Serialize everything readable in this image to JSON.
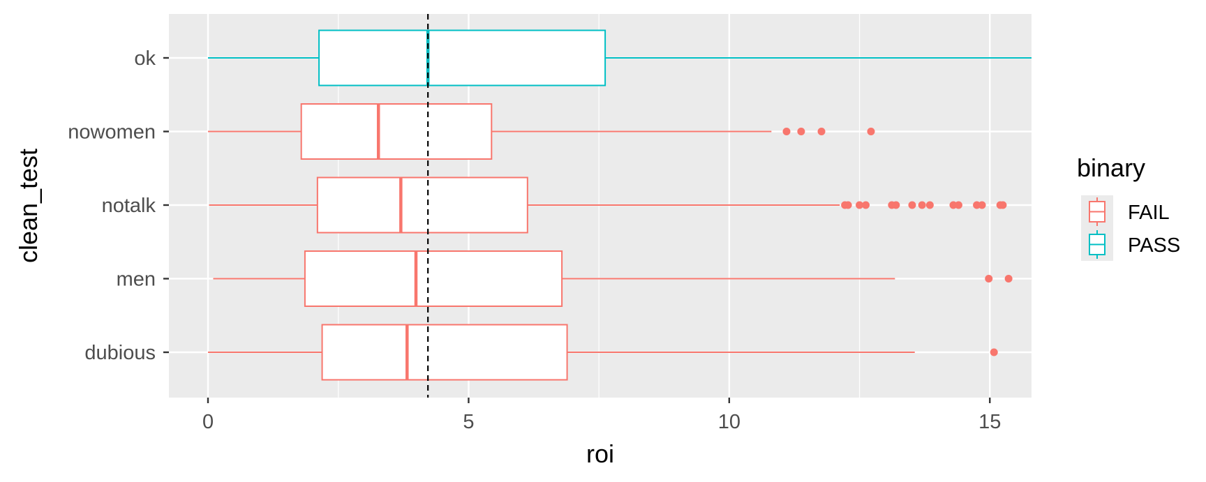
{
  "chart_data": {
    "type": "boxplot",
    "orientation": "horizontal",
    "xlabel": "roi",
    "ylabel": "clean_test",
    "xlim": [
      -0.75,
      15.8
    ],
    "xticks": [
      0,
      5,
      10,
      15
    ],
    "xtick_labels": [
      "0",
      "5",
      "10",
      "15"
    ],
    "categories": [
      "ok",
      "nowomen",
      "notalk",
      "men",
      "dubious"
    ],
    "reference_line": {
      "x": 4.22,
      "style": "dashed",
      "color": "#000000"
    },
    "grid": true,
    "panel_background": "#ebebeb",
    "legend": {
      "title": "binary",
      "position": "right",
      "entries": [
        {
          "label": "FAIL",
          "color": "#f8766d"
        },
        {
          "label": "PASS",
          "color": "#00bfc4"
        }
      ]
    },
    "boxes": [
      {
        "category": "ok",
        "group": "PASS",
        "whisker_low": 0.0,
        "q1": 2.13,
        "median": 4.22,
        "q3": 7.62,
        "whisker_high": 15.8,
        "outliers": []
      },
      {
        "category": "nowomen",
        "group": "FAIL",
        "whisker_low": 0.0,
        "q1": 1.79,
        "median": 3.27,
        "q3": 5.44,
        "whisker_high": 10.81,
        "outliers": [
          11.1,
          11.38,
          11.77,
          12.72
        ]
      },
      {
        "category": "notalk",
        "group": "FAIL",
        "whisker_low": 0.02,
        "q1": 2.1,
        "median": 3.7,
        "q3": 6.13,
        "whisker_high": 12.12,
        "outliers": [
          12.22,
          12.28,
          12.5,
          12.62,
          13.12,
          13.2,
          13.51,
          13.7,
          13.85,
          14.3,
          14.4,
          14.75,
          14.85,
          15.2,
          15.25
        ]
      },
      {
        "category": "men",
        "group": "FAIL",
        "whisker_low": 0.1,
        "q1": 1.86,
        "median": 3.99,
        "q3": 6.79,
        "whisker_high": 13.18,
        "outliers": [
          14.98,
          15.36
        ]
      },
      {
        "category": "dubious",
        "group": "FAIL",
        "whisker_low": 0.0,
        "q1": 2.19,
        "median": 3.82,
        "q3": 6.89,
        "whisker_high": 13.56,
        "outliers": [
          15.08
        ]
      }
    ]
  }
}
